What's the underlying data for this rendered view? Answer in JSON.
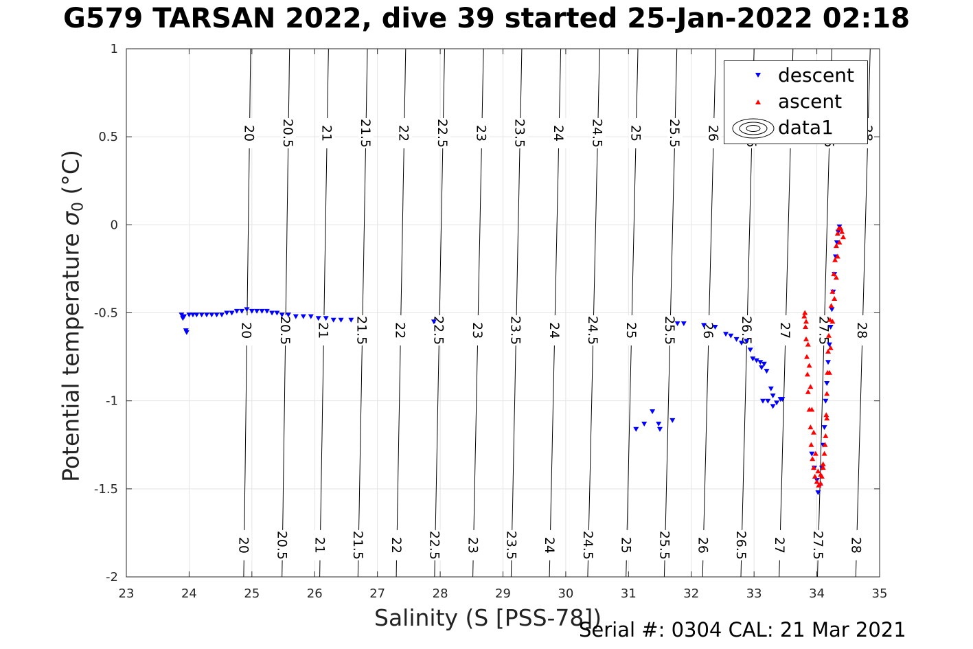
{
  "chart_data": {
    "type": "scatter",
    "title": "G579 TARSAN 2022, dive 39 started 25-Jan-2022 02:18",
    "xlabel": "Salinity (S [PSS-78])",
    "ylabel": "Potential temperature",
    "ylabel_symbol": "σ",
    "ylabel_subscript": "0",
    "ylabel_unit": "(°C)",
    "xlim": [
      23,
      35
    ],
    "ylim": [
      -2,
      1
    ],
    "xticks": [
      23,
      24,
      25,
      26,
      27,
      28,
      29,
      30,
      31,
      32,
      33,
      34,
      35
    ],
    "yticks": [
      -2,
      -1.5,
      -1,
      -0.5,
      0,
      0.5,
      1
    ],
    "ytick_labels": [
      "-2",
      "-1.5",
      "-1",
      "-0.5",
      "0",
      "0.5",
      "1"
    ],
    "grid": true,
    "legend_position": "top-right",
    "series": [
      {
        "name": "descent",
        "marker": "triangle-down",
        "color": "#0000ff",
        "points": [
          [
            23.88,
            -0.51
          ],
          [
            23.9,
            -0.53
          ],
          [
            23.92,
            -0.52
          ],
          [
            23.95,
            -0.6
          ],
          [
            23.96,
            -0.61
          ],
          [
            24.0,
            -0.51
          ],
          [
            24.06,
            -0.51
          ],
          [
            24.12,
            -0.51
          ],
          [
            24.2,
            -0.51
          ],
          [
            24.28,
            -0.51
          ],
          [
            24.36,
            -0.51
          ],
          [
            24.44,
            -0.51
          ],
          [
            24.52,
            -0.51
          ],
          [
            24.6,
            -0.5
          ],
          [
            24.68,
            -0.5
          ],
          [
            24.76,
            -0.49
          ],
          [
            24.84,
            -0.49
          ],
          [
            24.92,
            -0.48
          ],
          [
            25.0,
            -0.49
          ],
          [
            25.08,
            -0.49
          ],
          [
            25.16,
            -0.49
          ],
          [
            25.24,
            -0.49
          ],
          [
            25.32,
            -0.5
          ],
          [
            25.4,
            -0.5
          ],
          [
            25.48,
            -0.51
          ],
          [
            25.58,
            -0.51
          ],
          [
            25.7,
            -0.52
          ],
          [
            25.82,
            -0.52
          ],
          [
            25.94,
            -0.52
          ],
          [
            26.06,
            -0.53
          ],
          [
            26.18,
            -0.53
          ],
          [
            26.3,
            -0.54
          ],
          [
            26.42,
            -0.54
          ],
          [
            26.58,
            -0.54
          ],
          [
            27.9,
            -0.55
          ],
          [
            31.12,
            -1.16
          ],
          [
            31.25,
            -1.13
          ],
          [
            31.38,
            -1.06
          ],
          [
            31.48,
            -1.13
          ],
          [
            31.5,
            -1.16
          ],
          [
            31.7,
            -1.11
          ],
          [
            31.78,
            -0.56
          ],
          [
            31.88,
            -0.56
          ],
          [
            32.2,
            -0.57
          ],
          [
            32.38,
            -0.58
          ],
          [
            32.55,
            -0.62
          ],
          [
            32.63,
            -0.63
          ],
          [
            32.72,
            -0.65
          ],
          [
            32.8,
            -0.67
          ],
          [
            32.88,
            -0.66
          ],
          [
            32.94,
            -0.71
          ],
          [
            32.98,
            -0.76
          ],
          [
            33.04,
            -0.77
          ],
          [
            33.1,
            -0.78
          ],
          [
            33.16,
            -0.79
          ],
          [
            33.2,
            -0.83
          ],
          [
            33.12,
            -0.81
          ],
          [
            33.27,
            -0.93
          ],
          [
            33.3,
            -0.97
          ],
          [
            33.14,
            -1.0
          ],
          [
            33.22,
            -1.0
          ],
          [
            33.3,
            -1.03
          ],
          [
            33.36,
            -1.01
          ],
          [
            33.42,
            -0.99
          ],
          [
            33.45,
            -0.99
          ],
          [
            33.92,
            -1.3
          ],
          [
            33.96,
            -1.38
          ],
          [
            34.0,
            -1.45
          ],
          [
            34.02,
            -1.52
          ],
          [
            34.05,
            -1.48
          ],
          [
            34.08,
            -1.38
          ],
          [
            34.1,
            -1.25
          ],
          [
            34.12,
            -1.15
          ],
          [
            34.14,
            -1.0
          ],
          [
            34.16,
            -0.9
          ],
          [
            34.18,
            -0.78
          ],
          [
            34.2,
            -0.68
          ],
          [
            34.22,
            -0.58
          ],
          [
            34.24,
            -0.48
          ],
          [
            34.26,
            -0.38
          ],
          [
            34.28,
            -0.28
          ],
          [
            34.3,
            -0.18
          ],
          [
            34.32,
            -0.1
          ],
          [
            34.34,
            -0.04
          ],
          [
            34.36,
            -0.01
          ]
        ]
      },
      {
        "name": "ascent",
        "marker": "triangle-up",
        "color": "#ff0000",
        "points": [
          [
            34.42,
            -0.07
          ],
          [
            34.38,
            -0.02
          ],
          [
            34.35,
            -0.02
          ],
          [
            34.33,
            -0.05
          ],
          [
            34.31,
            -0.12
          ],
          [
            34.29,
            -0.2
          ],
          [
            34.27,
            -0.28
          ],
          [
            34.25,
            -0.38
          ],
          [
            34.23,
            -0.46
          ],
          [
            34.21,
            -0.54
          ],
          [
            34.19,
            -0.63
          ],
          [
            34.18,
            -0.72
          ],
          [
            34.17,
            -0.84
          ],
          [
            34.16,
            -0.96
          ],
          [
            34.15,
            -1.08
          ],
          [
            34.14,
            -1.2
          ],
          [
            34.12,
            -1.3
          ],
          [
            34.1,
            -1.38
          ],
          [
            34.08,
            -1.43
          ],
          [
            34.06,
            -1.47
          ],
          [
            34.03,
            -1.48
          ],
          [
            34.0,
            -1.46
          ],
          [
            33.97,
            -1.43
          ],
          [
            33.95,
            -1.38
          ],
          [
            33.93,
            -1.33
          ],
          [
            33.91,
            -1.25
          ],
          [
            33.9,
            -1.15
          ],
          [
            33.88,
            -1.05
          ],
          [
            33.86,
            -0.95
          ],
          [
            33.85,
            -0.85
          ],
          [
            33.84,
            -0.75
          ],
          [
            33.83,
            -0.65
          ],
          [
            33.82,
            -0.58
          ],
          [
            33.8,
            -0.52
          ],
          [
            33.81,
            -0.5
          ],
          [
            33.83,
            -0.55
          ],
          [
            33.86,
            -0.68
          ],
          [
            33.88,
            -0.8
          ],
          [
            33.9,
            -0.92
          ],
          [
            33.92,
            -1.05
          ],
          [
            33.95,
            -1.18
          ],
          [
            33.98,
            -1.3
          ],
          [
            34.02,
            -1.4
          ],
          [
            34.06,
            -1.42
          ],
          [
            34.1,
            -1.36
          ],
          [
            34.13,
            -1.25
          ],
          [
            34.16,
            -1.1
          ],
          [
            34.2,
            -0.84
          ],
          [
            34.22,
            -0.7
          ],
          [
            34.25,
            -0.55
          ],
          [
            34.28,
            -0.42
          ],
          [
            34.31,
            -0.3
          ],
          [
            34.33,
            -0.18
          ],
          [
            34.36,
            -0.1
          ],
          [
            34.4,
            -0.04
          ]
        ]
      }
    ],
    "contours": {
      "name": "data1",
      "levels": [
        20,
        20.5,
        21,
        21.5,
        22,
        22.5,
        23,
        23.5,
        24,
        24.5,
        25,
        25.5,
        26,
        26.5,
        27,
        27.5,
        28
      ],
      "labels": [
        "20",
        "20.5",
        "21",
        "21.5",
        "22",
        "22.5",
        "23",
        "23.5",
        "24",
        "24.5",
        "25",
        "25.5",
        "26",
        "26.5",
        "27",
        "27.5",
        "28"
      ],
      "salinity_at_top": [
        24.98,
        25.6,
        26.22,
        26.84,
        27.45,
        28.07,
        28.69,
        29.3,
        29.92,
        30.54,
        31.15,
        31.77,
        32.39,
        33.0,
        33.62,
        34.24,
        34.85
      ],
      "salinity_at_bottom": [
        24.87,
        25.48,
        26.08,
        26.69,
        27.3,
        27.91,
        28.52,
        29.13,
        29.74,
        30.35,
        30.96,
        31.57,
        32.18,
        32.79,
        33.4,
        34.01,
        34.62
      ]
    }
  },
  "legend": {
    "entries": [
      {
        "label": "descent",
        "icon": "triangle-down-marker",
        "color": "#0000ff"
      },
      {
        "label": "ascent",
        "icon": "triangle-up-marker",
        "color": "#ff0000"
      },
      {
        "label": "data1",
        "icon": "contour-ellipses"
      }
    ]
  },
  "footer": {
    "note": "Serial #: 0304  CAL: 21 Mar 2021"
  }
}
